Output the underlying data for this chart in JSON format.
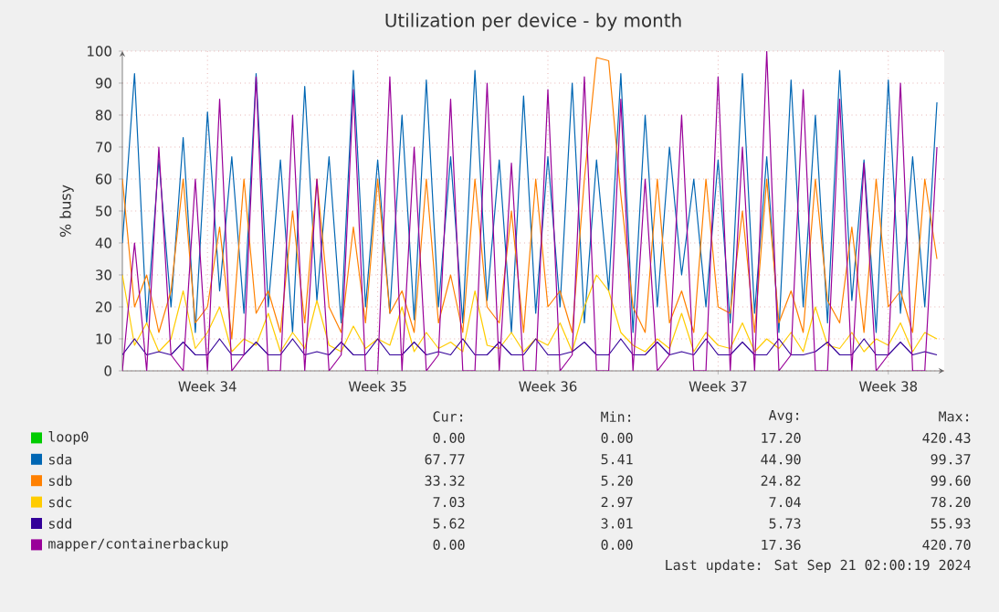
{
  "chart_data": {
    "type": "line",
    "title": "Utilization per device - by month",
    "ylabel": "% busy",
    "categories": [
      null,
      null,
      null,
      null,
      null,
      null,
      null,
      "Week 34",
      null,
      null,
      null,
      null,
      null,
      null,
      null,
      null,
      null,
      null,
      null,
      null,
      null,
      "Week 35",
      null,
      null,
      null,
      null,
      null,
      null,
      null,
      null,
      null,
      null,
      null,
      null,
      null,
      "Week 36",
      null,
      null,
      null,
      null,
      null,
      null,
      null,
      null,
      null,
      null,
      null,
      null,
      null,
      "Week 37",
      null,
      null,
      null,
      null,
      null,
      null,
      null,
      null,
      null,
      null,
      null,
      null,
      null,
      "Week 38",
      null,
      null,
      null,
      null
    ],
    "ylim": [
      0,
      100
    ],
    "yticks": [
      0,
      10,
      20,
      30,
      40,
      50,
      60,
      70,
      80,
      90,
      100
    ],
    "grid": true,
    "legend": "bottom",
    "series": [
      {
        "name": "loop0",
        "color": "#00cc00",
        "values": [
          null,
          null,
          null,
          null,
          null,
          null,
          null,
          null,
          null,
          null,
          null,
          null,
          null,
          null,
          null,
          null,
          null,
          null,
          null,
          null,
          null,
          null,
          null,
          null,
          null,
          null,
          null,
          null,
          null,
          null,
          null,
          null,
          null,
          null,
          null,
          null,
          null,
          null,
          null,
          null,
          null,
          null,
          null,
          null,
          null,
          null,
          null,
          null,
          null,
          null,
          null,
          null,
          null,
          null,
          null,
          null,
          null,
          null,
          null,
          null,
          null,
          null,
          null,
          null,
          null,
          null,
          null,
          null
        ]
      },
      {
        "name": "sda",
        "color": "#0066b3",
        "values": [
          40,
          93,
          15,
          66,
          20,
          73,
          12,
          81,
          25,
          67,
          18,
          93,
          20,
          66,
          12,
          89,
          22,
          67,
          15,
          94,
          20,
          66,
          18,
          80,
          16,
          91,
          20,
          67,
          15,
          94,
          22,
          66,
          12,
          86,
          18,
          67,
          20,
          90,
          15,
          66,
          25,
          93,
          12,
          80,
          20,
          70,
          30,
          60,
          20,
          66,
          15,
          93,
          18,
          67,
          12,
          91,
          20,
          80,
          15,
          94,
          22,
          66,
          12,
          91,
          18,
          67,
          20,
          84
        ]
      },
      {
        "name": "sdb",
        "color": "#ff8000",
        "values": [
          60,
          20,
          30,
          12,
          25,
          60,
          15,
          20,
          45,
          10,
          60,
          18,
          25,
          12,
          50,
          15,
          60,
          20,
          12,
          45,
          15,
          60,
          18,
          25,
          12,
          60,
          15,
          30,
          12,
          60,
          20,
          15,
          50,
          12,
          60,
          20,
          25,
          12,
          60,
          98,
          97,
          55,
          20,
          12,
          60,
          15,
          25,
          12,
          60,
          20,
          18,
          50,
          12,
          60,
          15,
          25,
          12,
          60,
          22,
          15,
          45,
          12,
          60,
          20,
          25,
          12,
          60,
          35
        ]
      },
      {
        "name": "sdc",
        "color": "#ffcc00",
        "values": [
          30,
          8,
          15,
          6,
          10,
          25,
          7,
          12,
          20,
          6,
          10,
          8,
          18,
          6,
          12,
          7,
          22,
          8,
          6,
          14,
          7,
          10,
          8,
          20,
          6,
          12,
          7,
          9,
          6,
          25,
          8,
          7,
          12,
          6,
          10,
          8,
          15,
          6,
          20,
          30,
          25,
          12,
          8,
          6,
          10,
          7,
          18,
          6,
          12,
          8,
          7,
          15,
          6,
          10,
          7,
          12,
          6,
          20,
          8,
          7,
          12,
          6,
          10,
          8,
          15,
          6,
          12,
          10
        ]
      },
      {
        "name": "sdd",
        "color": "#330099",
        "values": [
          5,
          10,
          5,
          6,
          5,
          9,
          5,
          5,
          10,
          5,
          5,
          9,
          5,
          5,
          10,
          5,
          6,
          5,
          9,
          5,
          5,
          10,
          5,
          5,
          9,
          5,
          6,
          5,
          10,
          5,
          5,
          9,
          5,
          5,
          10,
          5,
          5,
          6,
          9,
          5,
          5,
          10,
          5,
          5,
          9,
          5,
          6,
          5,
          10,
          5,
          5,
          9,
          5,
          5,
          10,
          5,
          5,
          6,
          9,
          5,
          5,
          10,
          5,
          5,
          9,
          5,
          6,
          5
        ]
      },
      {
        "name": "mapper/containerbackup",
        "color": "#990099",
        "values": [
          0,
          40,
          0,
          70,
          5,
          0,
          60,
          0,
          85,
          0,
          5,
          92,
          0,
          0,
          80,
          0,
          60,
          0,
          5,
          88,
          0,
          0,
          92,
          0,
          70,
          0,
          5,
          85,
          0,
          0,
          90,
          0,
          65,
          0,
          0,
          88,
          0,
          5,
          92,
          0,
          0,
          85,
          0,
          60,
          0,
          5,
          80,
          0,
          0,
          92,
          0,
          70,
          0,
          100,
          0,
          5,
          88,
          0,
          0,
          85,
          0,
          65,
          0,
          5,
          90,
          0,
          0,
          70
        ]
      }
    ],
    "annotations": [
      "Cur:",
      "Min:",
      "Avg:",
      "Max:",
      "0.00",
      "0.00",
      "17.20",
      "420.43",
      "67.77",
      "5.41",
      "44.90",
      "99.37",
      "33.32",
      "5.20",
      "24.82",
      "99.60",
      "7.03",
      "2.97",
      "7.04",
      "78.20",
      "5.62",
      "3.01",
      "5.73",
      "55.93",
      "0.00",
      "0.00",
      "17.36",
      "420.70",
      "Last update: Sat Sep 21 02:00:19 2024"
    ]
  }
}
